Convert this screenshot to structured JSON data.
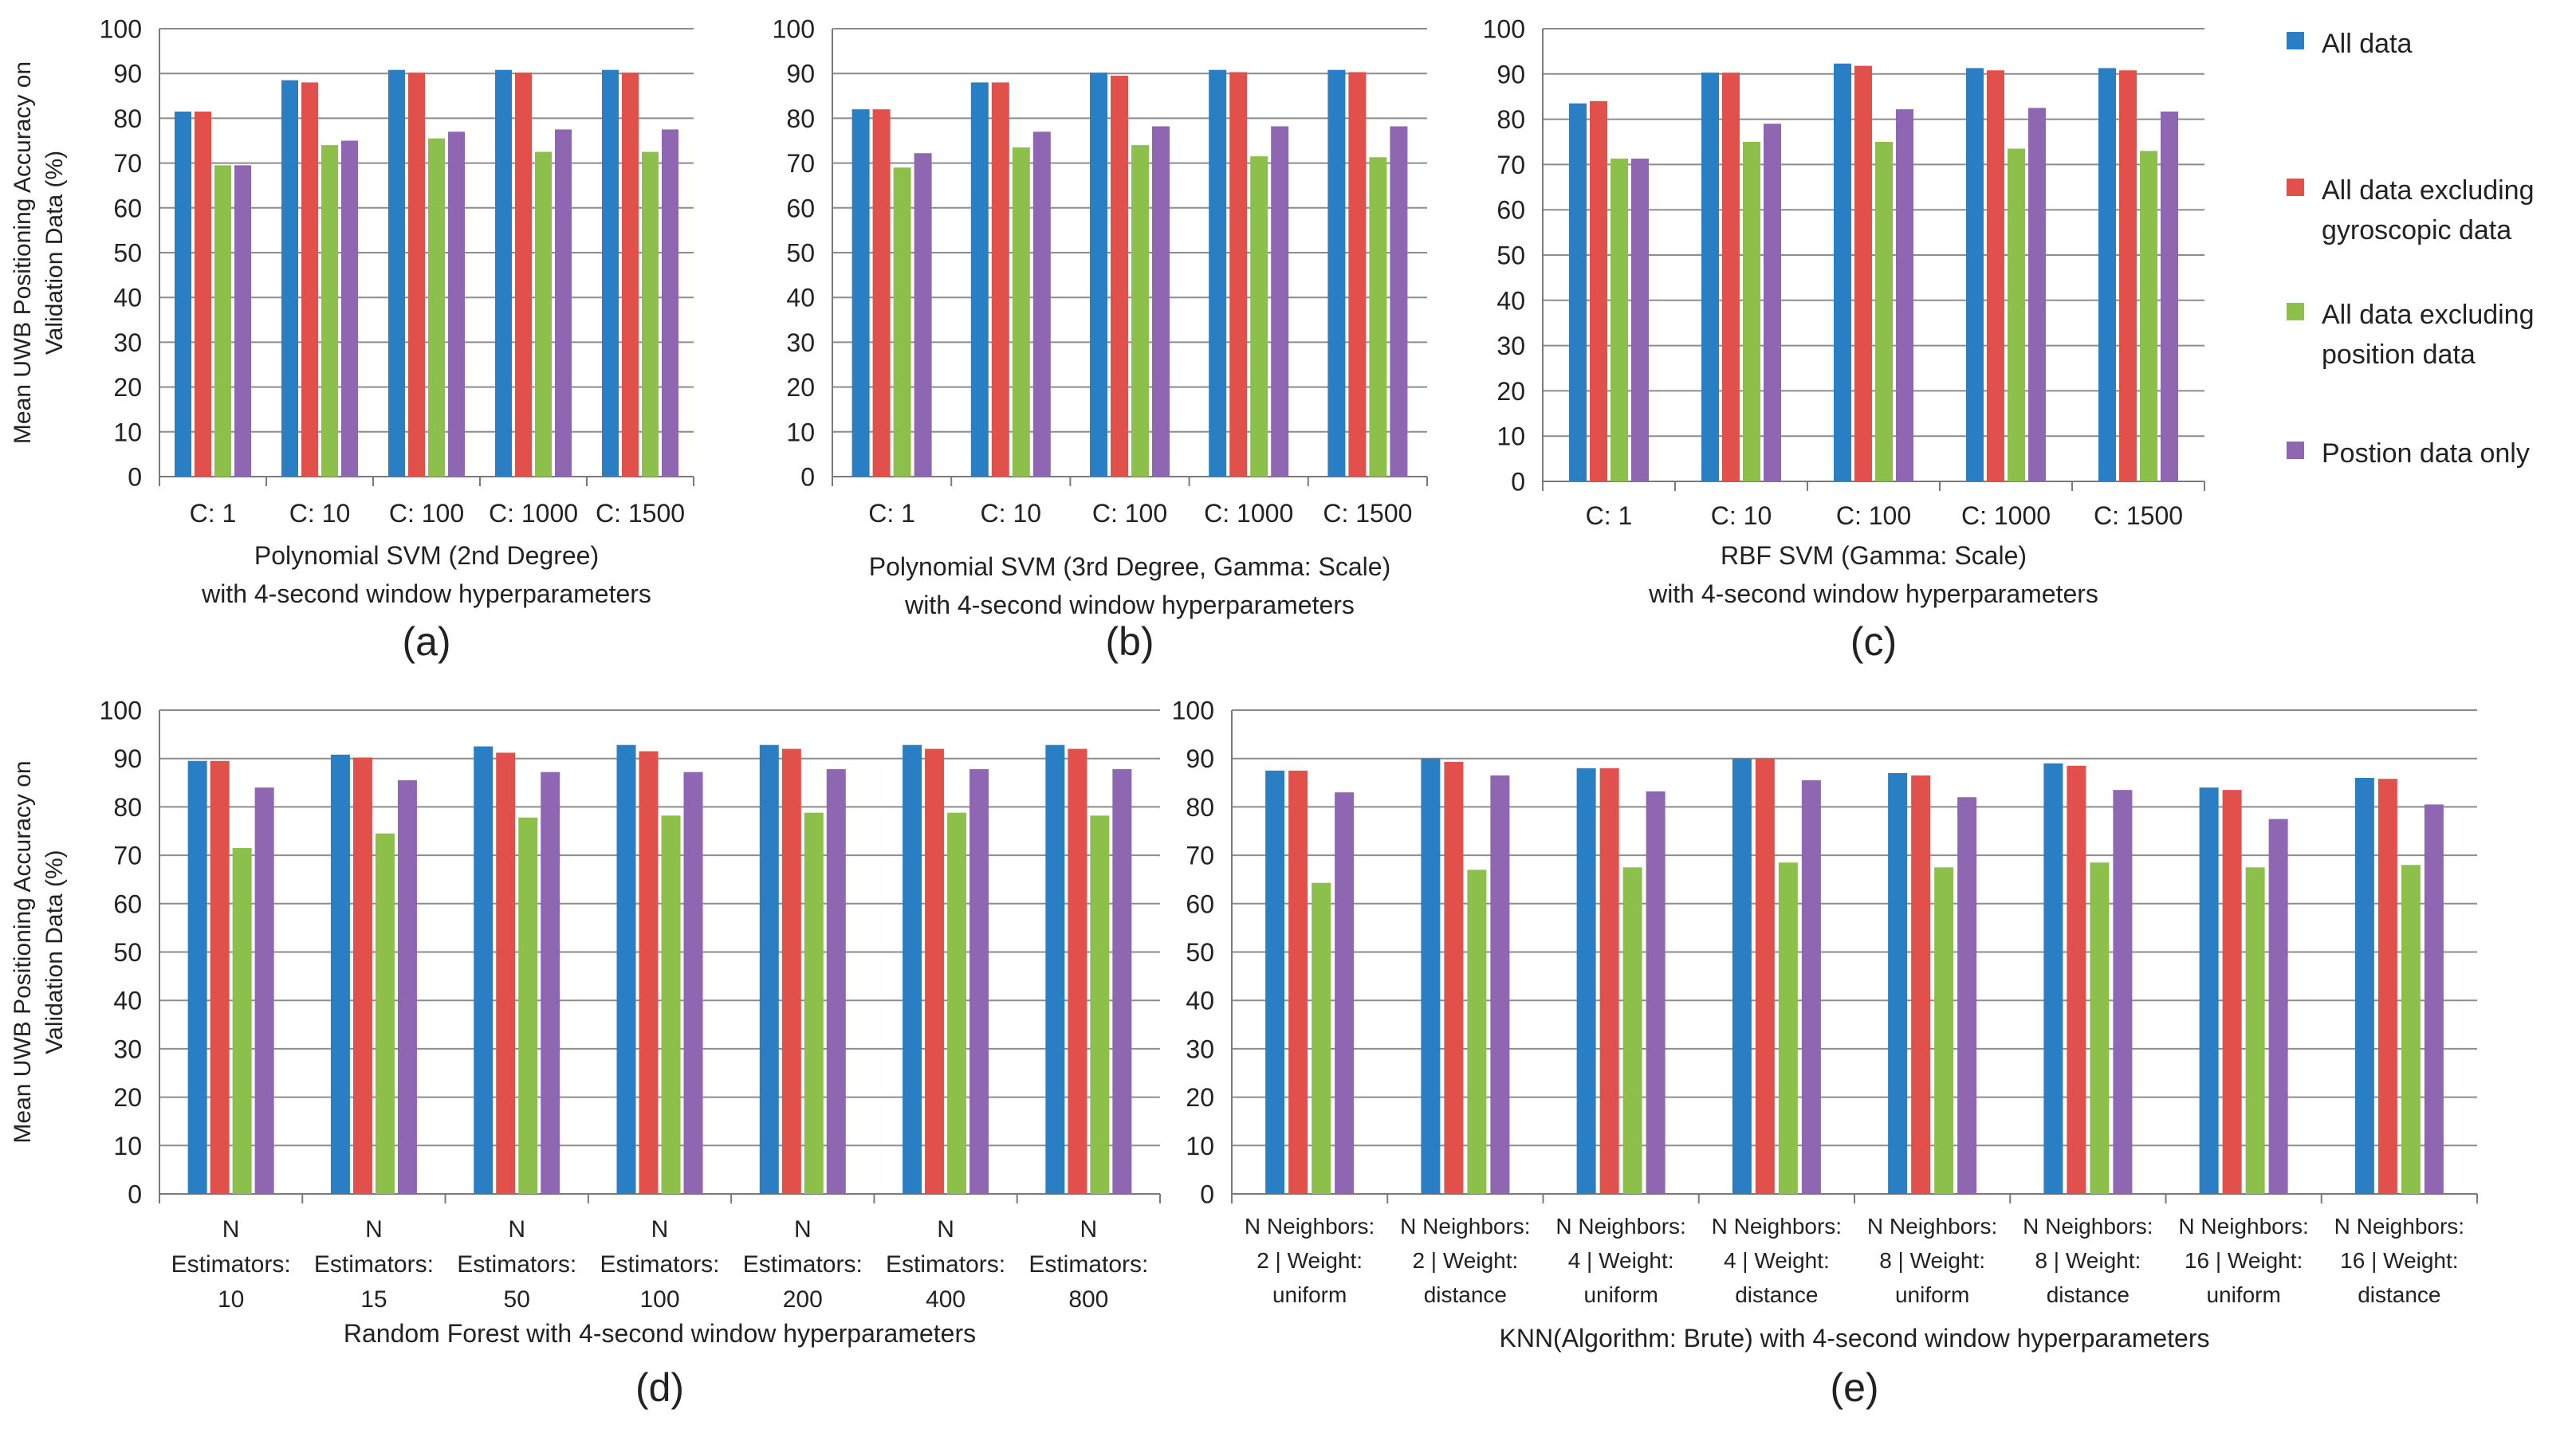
{
  "series_names": [
    "All data",
    "All data excluding gyroscopic data",
    "All data excluding position data",
    "Postion data only"
  ],
  "legend": {
    "items": [
      {
        "label": "All data",
        "label_lines": [
          "All data"
        ],
        "color": "#2a7fc4"
      },
      {
        "label": "All data excluding gyroscopic data",
        "label_lines": [
          "All data excluding",
          "gyroscopic data"
        ],
        "color": "#e2504c"
      },
      {
        "label": "All data excluding position data",
        "label_lines": [
          "All data excluding",
          "position data"
        ],
        "color": "#8dc04a"
      },
      {
        "label": "Postion data only",
        "label_lines": [
          "Postion data only"
        ],
        "color": "#8e66b2"
      }
    ]
  },
  "ylabel_lines": [
    "Mean UWB Positioning Accuracy on",
    "Validation Data (%)"
  ],
  "chart_data": [
    {
      "type": "bar",
      "panel": "(a)",
      "title_lines": [
        "Polynomial SVM (2nd Degree)",
        "with 4-second window hyperparameters"
      ],
      "ylabel": "Mean UWB Positioning Accuracy on Validation Data (%)",
      "ylim": [
        0,
        100
      ],
      "yticks": [
        0,
        10,
        20,
        30,
        40,
        50,
        60,
        70,
        80,
        90,
        100
      ],
      "grid": true,
      "categories": [
        "C: 1",
        "C: 10",
        "C: 100",
        "C: 1000",
        "C: 1500"
      ],
      "category_lines": [
        [
          "C: 1"
        ],
        [
          "C: 10"
        ],
        [
          "C: 100"
        ],
        [
          "C: 1000"
        ],
        [
          "C: 1500"
        ]
      ],
      "series": [
        {
          "name": "All data",
          "values": [
            81.5,
            88.5,
            90.8,
            90.8,
            90.8
          ]
        },
        {
          "name": "All data excluding gyroscopic data",
          "values": [
            81.5,
            88,
            90.2,
            90.2,
            90.2
          ]
        },
        {
          "name": "All data excluding position data",
          "values": [
            69.5,
            74,
            75.5,
            72.5,
            72.5
          ]
        },
        {
          "name": "Postion data only",
          "values": [
            69.5,
            75,
            77,
            77.5,
            77.5
          ]
        }
      ]
    },
    {
      "type": "bar",
      "panel": "(b)",
      "title_lines": [
        "Polynomial SVM (3rd Degree, Gamma: Scale)",
        "with 4-second window hyperparameters"
      ],
      "ylabel": "",
      "ylim": [
        0,
        100
      ],
      "yticks": [
        0,
        10,
        20,
        30,
        40,
        50,
        60,
        70,
        80,
        90,
        100
      ],
      "grid": true,
      "categories": [
        "C: 1",
        "C: 10",
        "C: 100",
        "C: 1000",
        "C: 1500"
      ],
      "category_lines": [
        [
          "C: 1"
        ],
        [
          "C: 10"
        ],
        [
          "C: 100"
        ],
        [
          "C: 1000"
        ],
        [
          "C: 1500"
        ]
      ],
      "series": [
        {
          "name": "All data",
          "values": [
            82,
            88,
            90.2,
            90.8,
            90.8
          ]
        },
        {
          "name": "All data excluding gyroscopic data",
          "values": [
            82,
            88,
            89.5,
            90.3,
            90.3
          ]
        },
        {
          "name": "All data excluding position data",
          "values": [
            69,
            73.5,
            74,
            71.5,
            71.3
          ]
        },
        {
          "name": "Postion data only",
          "values": [
            72.2,
            77,
            78.2,
            78.2,
            78.2
          ]
        }
      ]
    },
    {
      "type": "bar",
      "panel": "(c)",
      "title_lines": [
        "RBF SVM (Gamma: Scale)",
        "with 4-second window hyperparameters"
      ],
      "ylabel": "",
      "ylim": [
        0,
        100
      ],
      "yticks": [
        0,
        10,
        20,
        30,
        40,
        50,
        60,
        70,
        80,
        90,
        100
      ],
      "grid": true,
      "categories": [
        "C: 1",
        "C: 10",
        "C: 100",
        "C: 1000",
        "C: 1500"
      ],
      "category_lines": [
        [
          "C: 1"
        ],
        [
          "C: 10"
        ],
        [
          "C: 100"
        ],
        [
          "C: 1000"
        ],
        [
          "C: 1500"
        ]
      ],
      "series": [
        {
          "name": "All data",
          "values": [
            83.5,
            90.3,
            92.3,
            91.3,
            91.3
          ]
        },
        {
          "name": "All data excluding gyroscopic data",
          "values": [
            84,
            90.3,
            91.8,
            90.8,
            90.8
          ]
        },
        {
          "name": "All data excluding position data",
          "values": [
            71.3,
            75,
            75,
            73.5,
            73
          ]
        },
        {
          "name": "Postion data only",
          "values": [
            71.3,
            79,
            82.2,
            82.5,
            81.7
          ]
        }
      ]
    },
    {
      "type": "bar",
      "panel": "(d)",
      "title_lines": [
        "Random Forest with 4-second window hyperparameters"
      ],
      "ylabel": "Mean UWB Positioning Accuracy on Validation Data (%)",
      "ylim": [
        0,
        100
      ],
      "yticks": [
        0,
        10,
        20,
        30,
        40,
        50,
        60,
        70,
        80,
        90,
        100
      ],
      "grid": true,
      "categories": [
        "N Estimators: 10",
        "N Estimators: 15",
        "N Estimators: 50",
        "N Estimators: 100",
        "N Estimators: 200",
        "N Estimators: 400",
        "N Estimators: 800"
      ],
      "category_lines": [
        [
          "N",
          "Estimators:",
          "10"
        ],
        [
          "N",
          "Estimators:",
          "15"
        ],
        [
          "N",
          "Estimators:",
          "50"
        ],
        [
          "N",
          "Estimators:",
          "100"
        ],
        [
          "N",
          "Estimators:",
          "200"
        ],
        [
          "N",
          "Estimators:",
          "400"
        ],
        [
          "N",
          "Estimators:",
          "800"
        ]
      ],
      "series": [
        {
          "name": "All data",
          "values": [
            89.5,
            90.8,
            92.5,
            92.8,
            92.8,
            92.8,
            92.8
          ]
        },
        {
          "name": "All data excluding gyroscopic data",
          "values": [
            89.5,
            90.2,
            91.2,
            91.5,
            92,
            92,
            92
          ]
        },
        {
          "name": "All data excluding position data",
          "values": [
            71.5,
            74.5,
            77.8,
            78.2,
            78.8,
            78.8,
            78.2
          ]
        },
        {
          "name": "Postion data only",
          "values": [
            84,
            85.5,
            87.2,
            87.2,
            87.8,
            87.8,
            87.8
          ]
        }
      ]
    },
    {
      "type": "bar",
      "panel": "(e)",
      "title_lines": [
        "KNN(Algorithm: Brute) with 4-second window hyperparameters"
      ],
      "ylabel": "",
      "ylim": [
        0,
        100
      ],
      "yticks": [
        0,
        10,
        20,
        30,
        40,
        50,
        60,
        70,
        80,
        90,
        100
      ],
      "grid": true,
      "categories": [
        "N Neighbors: 2 | Weight: uniform",
        "N Neighbors: 2 | Weight: distance",
        "N Neighbors: 4 | Weight: uniform",
        "N Neighbors: 4 | Weight: distance",
        "N Neighbors: 8 | Weight: uniform",
        "N Neighbors: 8 | Weight: distance",
        "N Neighbors: 16 | Weight: uniform",
        "N Neighbors: 16 | Weight: distance"
      ],
      "category_lines": [
        [
          "N Neighbors:",
          "2 | Weight:",
          "uniform"
        ],
        [
          "N Neighbors:",
          "2 | Weight:",
          "distance"
        ],
        [
          "N Neighbors:",
          "4 | Weight:",
          "uniform"
        ],
        [
          "N Neighbors:",
          "4 | Weight:",
          "distance"
        ],
        [
          "N Neighbors:",
          "8 | Weight:",
          "uniform"
        ],
        [
          "N Neighbors:",
          "8 | Weight:",
          "distance"
        ],
        [
          "N Neighbors:",
          "16 | Weight:",
          "uniform"
        ],
        [
          "N Neighbors:",
          "16 | Weight:",
          "distance"
        ]
      ],
      "series": [
        {
          "name": "All data",
          "values": [
            87.5,
            90,
            88,
            90,
            87,
            89,
            84,
            86
          ]
        },
        {
          "name": "All data excluding gyroscopic data",
          "values": [
            87.5,
            89.3,
            88,
            90,
            86.5,
            88.5,
            83.5,
            85.8
          ]
        },
        {
          "name": "All data excluding position data",
          "values": [
            64.3,
            67,
            67.5,
            68.5,
            67.5,
            68.5,
            67.5,
            68
          ]
        },
        {
          "name": "Postion data only",
          "values": [
            83,
            86.5,
            83.2,
            85.5,
            82,
            83.5,
            77.5,
            80.5
          ]
        }
      ]
    }
  ]
}
